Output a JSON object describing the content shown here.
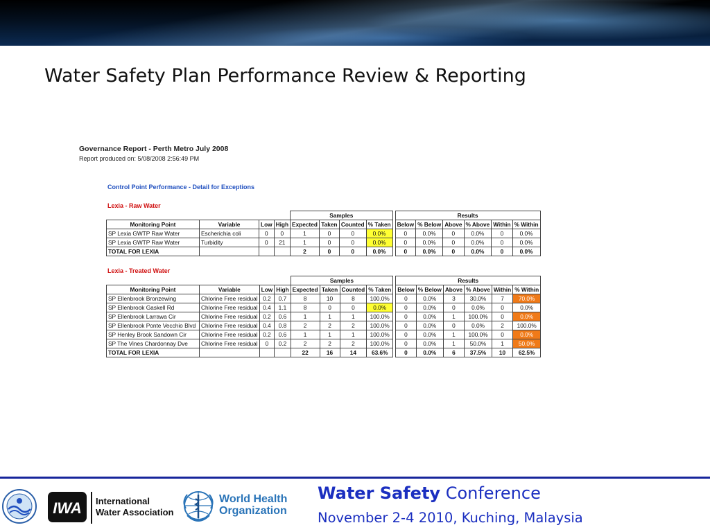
{
  "slide": {
    "title": "Water Safety Plan Performance Review & Reporting"
  },
  "report": {
    "title": "Governance Report - Perth Metro July 2008",
    "produced": "Report produced on: 5/08/2008 2:56:49 PM",
    "section": "Control Point Performance - Detail for Exceptions",
    "groups": [
      {
        "name": "Lexia - Raw Water",
        "rows": [
          {
            "mp": "SP Lexia GWTP Raw Water",
            "var": "Escherichia coli",
            "low": "0",
            "high": "0",
            "expected": "1",
            "taken": "0",
            "counted": "0",
            "pct_taken": "0.0%",
            "below": "0",
            "pct_below": "0.0%",
            "above": "0",
            "pct_above": "0.0%",
            "within": "0",
            "pct_within": "0.0%"
          },
          {
            "mp": "SP Lexia GWTP Raw Water",
            "var": "Turbidity",
            "low": "0",
            "high": "21",
            "expected": "1",
            "taken": "0",
            "counted": "0",
            "pct_taken": "0.0%",
            "below": "0",
            "pct_below": "0.0%",
            "above": "0",
            "pct_above": "0.0%",
            "within": "0",
            "pct_within": "0.0%"
          }
        ],
        "total": {
          "label": "TOTAL FOR LEXIA",
          "expected": "2",
          "taken": "0",
          "counted": "0",
          "pct_taken": "0.0%",
          "below": "0",
          "pct_below": "0.0%",
          "above": "0",
          "pct_above": "0.0%",
          "within": "0",
          "pct_within": "0.0%"
        }
      },
      {
        "name": "Lexia - Treated Water",
        "rows": [
          {
            "mp": "SP Ellenbrook Bronzewing",
            "var": "Chlorine Free residual",
            "low": "0.2",
            "high": "0.7",
            "expected": "8",
            "taken": "10",
            "counted": "8",
            "pct_taken": "100.0%",
            "below": "0",
            "pct_below": "0.0%",
            "above": "3",
            "pct_above": "30.0%",
            "within": "7",
            "pct_within": "70.0%"
          },
          {
            "mp": "SP Ellenbrook Gaskell Rd",
            "var": "Chlorine Free residual",
            "low": "0.4",
            "high": "1.1",
            "expected": "8",
            "taken": "0",
            "counted": "0",
            "pct_taken": "0.0%",
            "below": "0",
            "pct_below": "0.0%",
            "above": "0",
            "pct_above": "0.0%",
            "within": "0",
            "pct_within": "0.0%"
          },
          {
            "mp": "SP Ellenbrook Larrawa Cir",
            "var": "Chlorine Free residual",
            "low": "0.2",
            "high": "0.6",
            "expected": "1",
            "taken": "1",
            "counted": "1",
            "pct_taken": "100.0%",
            "below": "0",
            "pct_below": "0.0%",
            "above": "1",
            "pct_above": "100.0%",
            "within": "0",
            "pct_within": "0.0%"
          },
          {
            "mp": "SP Ellenbrook Ponte Vecchio Blvd",
            "var": "Chlorine Free residual",
            "low": "0.4",
            "high": "0.8",
            "expected": "2",
            "taken": "2",
            "counted": "2",
            "pct_taken": "100.0%",
            "below": "0",
            "pct_below": "0.0%",
            "above": "0",
            "pct_above": "0.0%",
            "within": "2",
            "pct_within": "100.0%"
          },
          {
            "mp": "SP Henley Brook Sandown Cir",
            "var": "Chlorine Free residual",
            "low": "0.2",
            "high": "0.6",
            "expected": "1",
            "taken": "1",
            "counted": "1",
            "pct_taken": "100.0%",
            "below": "0",
            "pct_below": "0.0%",
            "above": "1",
            "pct_above": "100.0%",
            "within": "0",
            "pct_within": "0.0%"
          },
          {
            "mp": "SP The Vines Chardonnay Dve",
            "var": "Chlorine Free residual",
            "low": "0",
            "high": "0.2",
            "expected": "2",
            "taken": "2",
            "counted": "2",
            "pct_taken": "100.0%",
            "below": "0",
            "pct_below": "0.0%",
            "above": "1",
            "pct_above": "50.0%",
            "within": "1",
            "pct_within": "50.0%"
          }
        ],
        "total": {
          "label": "TOTAL FOR LEXIA",
          "expected": "22",
          "taken": "16",
          "counted": "14",
          "pct_taken": "63.6%",
          "below": "0",
          "pct_below": "0.0%",
          "above": "6",
          "pct_above": "37.5%",
          "within": "10",
          "pct_within": "62.5%"
        }
      }
    ],
    "headers": {
      "samples": "Samples",
      "results": "Results",
      "monitoring_point": "Monitoring Point",
      "variable": "Variable",
      "low": "Low",
      "high": "High",
      "expected": "Expected",
      "taken": "Taken",
      "counted": "Counted",
      "pct_taken": "% Taken",
      "below": "Below",
      "pct_below": "% Below",
      "above": "Above",
      "pct_above": "% Above",
      "within": "Within",
      "pct_within": "% Within"
    },
    "highlight_colors": {
      "yellow": "#ffff33",
      "orange": "#f07a18"
    }
  },
  "footer": {
    "iwa_line1": "International",
    "iwa_line2": "Water Association",
    "who_line1": "World Health",
    "who_line2": "Organization",
    "iwa_mark": "IWA",
    "conference_bold": "Water Safety",
    "conference_rest": " Conference",
    "conference_date": "November 2-4 2010, Kuching, Malaysia",
    "accent_color": "#1b2fc0"
  }
}
